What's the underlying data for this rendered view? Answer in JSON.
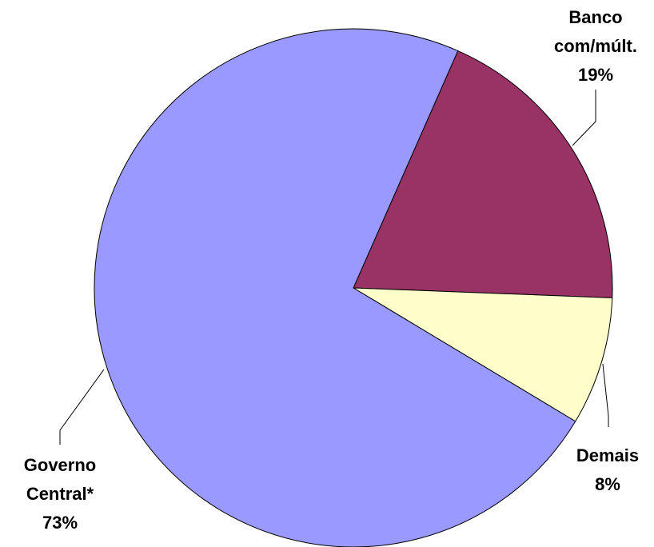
{
  "chart_data": {
    "type": "pie",
    "categories": [
      "Banco com/múlt.",
      "Demais",
      "Governo Central*"
    ],
    "values": [
      19,
      8,
      73
    ],
    "value_labels": [
      "19%",
      "8%",
      "73%"
    ],
    "colors": [
      "#993366",
      "#ffffcc",
      "#9999ff"
    ]
  }
}
